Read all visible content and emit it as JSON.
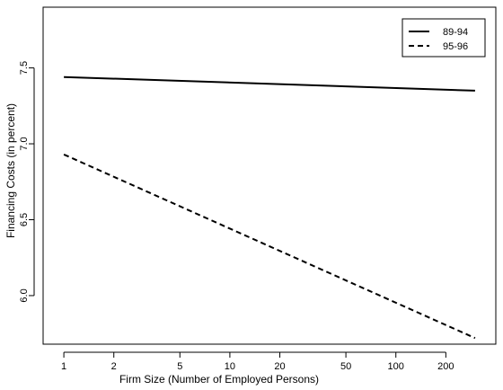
{
  "chart_data": {
    "type": "line",
    "title": "",
    "xlabel": "Firm Size (Number of Employed Persons)",
    "ylabel": "Financing Costs (in percent)",
    "x_scale": "log",
    "xlim": [
      0.75,
      400
    ],
    "ylim": [
      5.68,
      7.9
    ],
    "x_ticks": [
      1,
      2,
      5,
      10,
      20,
      50,
      100,
      200
    ],
    "x_tick_labels": [
      "1",
      "2",
      "5",
      "10",
      "20",
      "50",
      "100",
      "200"
    ],
    "y_ticks": [
      6.0,
      6.5,
      7.0,
      7.5
    ],
    "y_tick_labels": [
      "6.0",
      "6.5",
      "7.0",
      "7.5"
    ],
    "grid": false,
    "legend_position": "top-right",
    "series": [
      {
        "name": "89-94",
        "line_style": "solid",
        "x": [
          1,
          300
        ],
        "y": [
          7.44,
          7.35
        ]
      },
      {
        "name": "95-96",
        "line_style": "dashed",
        "x": [
          1,
          300
        ],
        "y": [
          6.93,
          5.72
        ]
      }
    ]
  }
}
